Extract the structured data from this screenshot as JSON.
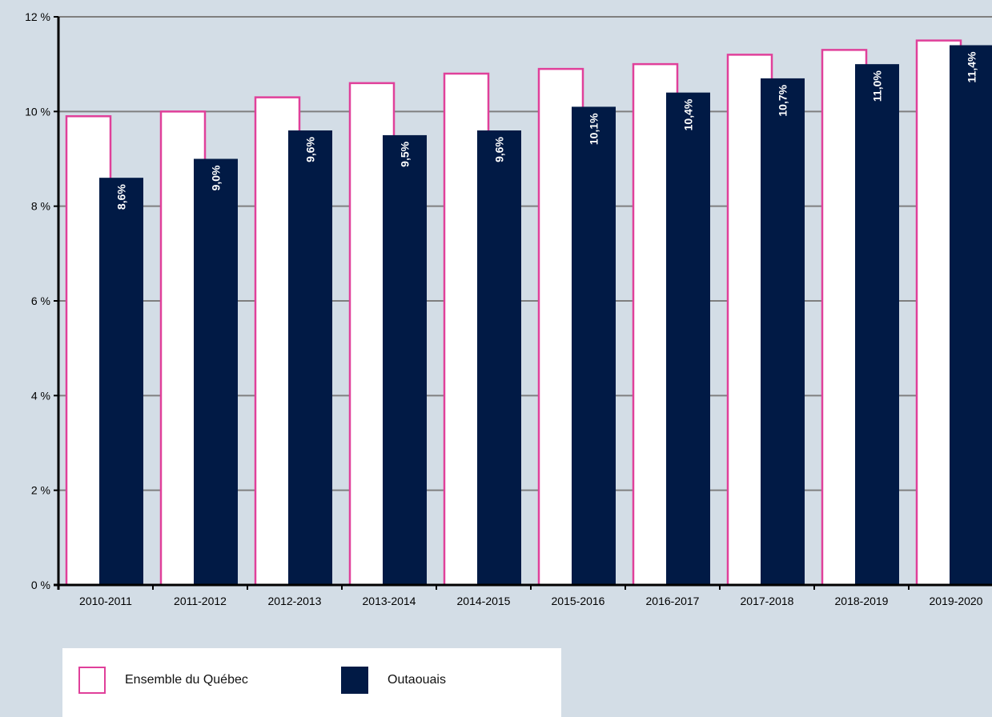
{
  "chart_data": {
    "type": "bar",
    "categories": [
      "2010-2011",
      "2011-2012",
      "2012-2013",
      "2013-2014",
      "2014-2015",
      "2015-2016",
      "2016-2017",
      "2017-2018",
      "2018-2019",
      "2019-2020"
    ],
    "series": [
      {
        "name": "Ensemble du Québec",
        "values": [
          9.9,
          10.0,
          10.3,
          10.6,
          10.8,
          10.9,
          11.0,
          11.2,
          11.3,
          11.5
        ],
        "style": "outline",
        "color": "#e0409a"
      },
      {
        "name": "Outaouais",
        "values": [
          8.6,
          9.0,
          9.6,
          9.5,
          9.6,
          10.1,
          10.4,
          10.7,
          11.0,
          11.4
        ],
        "style": "filled",
        "color": "#011a45",
        "data_labels": [
          "8,6%",
          "9,0%",
          "9,6%",
          "9,5%",
          "9,6%",
          "10,1%",
          "10,4%",
          "10,7%",
          "11,0%",
          "11,4%"
        ]
      }
    ],
    "ylim": [
      0,
      12
    ],
    "yticks": [
      0,
      2,
      4,
      6,
      8,
      10,
      12
    ],
    "ytick_labels": [
      "0 %",
      "2 %",
      "4 %",
      "6 %",
      "8 %",
      "10 %",
      "12 %"
    ],
    "grid": true,
    "legend_position": "bottom-left"
  },
  "legend": {
    "quebec_label": "Ensemble du Québec",
    "outaouais_label": "Outaouais"
  },
  "colors": {
    "background": "#d3dde6",
    "quebec": "#e0409a",
    "outaouais": "#011a45",
    "gridline": "#7f7f7f"
  }
}
